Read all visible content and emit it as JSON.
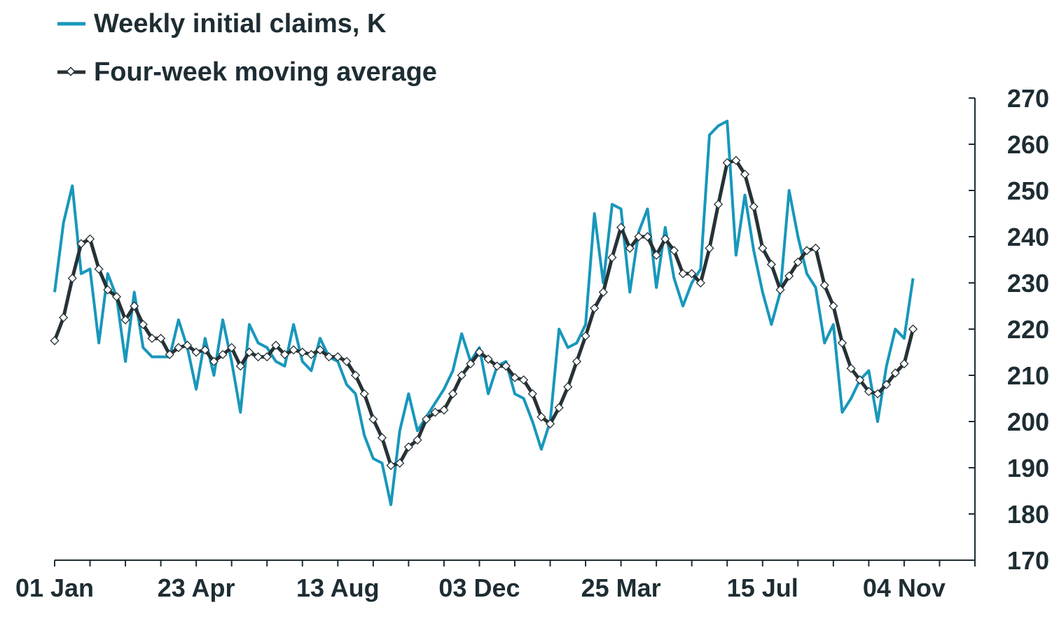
{
  "chart_data": {
    "type": "line",
    "title": "",
    "xlabel": "",
    "ylabel": "",
    "ylim": [
      170,
      270
    ],
    "yticks": [
      170,
      180,
      190,
      200,
      210,
      220,
      230,
      240,
      250,
      260,
      270
    ],
    "y_axis_side": "right",
    "grid": false,
    "legend_position": "top-left",
    "x_tick_labels": [
      "01 Jan",
      "23 Apr",
      "13 Aug",
      "03 Dec",
      "25 Mar",
      "15 Jul",
      "04 Nov"
    ],
    "x_tick_label_weeks": [
      0,
      16,
      32,
      48,
      64,
      80,
      96
    ],
    "x_minor_tick_every_weeks": 4,
    "x_axis_end_week": 104,
    "series": [
      {
        "name": "Weekly initial claims, K",
        "color": "#1897bb",
        "marker": "none",
        "start_week": 0,
        "values": [
          228,
          243,
          251,
          232,
          233,
          217,
          232,
          227,
          213,
          228,
          216,
          214,
          214,
          214,
          222,
          216,
          207,
          218,
          210,
          222,
          213,
          202,
          221,
          217,
          216,
          213,
          212,
          221,
          213,
          211,
          218,
          214,
          213,
          208,
          206,
          197,
          192,
          191,
          182,
          198,
          206,
          198,
          201,
          204,
          207,
          211,
          219,
          213,
          216,
          206,
          212,
          213,
          206,
          205,
          200,
          194,
          200,
          220,
          216,
          217,
          221,
          245,
          230,
          247,
          246,
          228,
          241,
          246,
          229,
          242,
          231,
          225,
          230,
          233,
          262,
          264,
          265,
          236,
          249,
          237,
          228,
          221,
          228,
          250,
          240,
          232,
          229,
          217,
          221,
          202,
          205,
          209,
          211,
          200,
          212,
          220,
          218,
          231
        ]
      },
      {
        "name": "Four-week moving average",
        "color": "#263236",
        "marker": "diamond",
        "start_week": 0,
        "values": [
          217.5,
          222.5,
          231,
          238.5,
          239.5,
          233,
          228.5,
          227,
          222,
          225,
          221,
          218,
          218,
          214.5,
          216,
          216.5,
          215,
          215.5,
          213,
          214.5,
          216,
          212,
          215,
          214,
          214,
          216.5,
          214.5,
          215.5,
          215,
          214.5,
          215.5,
          214,
          214,
          213,
          210,
          206,
          200.5,
          196.5,
          190.5,
          191,
          194.5,
          196,
          200.5,
          202,
          202.5,
          206,
          210,
          212.5,
          215,
          213.5,
          212,
          212,
          209.5,
          209,
          206,
          201,
          199.5,
          203,
          207.5,
          213,
          218.5,
          224.5,
          228,
          235.5,
          242,
          237.5,
          240,
          240,
          236,
          239.5,
          237,
          232,
          232,
          230,
          237.5,
          247,
          256,
          256.5,
          253.5,
          246.5,
          237.5,
          234,
          228.5,
          231.5,
          234.5,
          237,
          237.5,
          229.5,
          225,
          217,
          211.5,
          209,
          206.5,
          206,
          208,
          210.5,
          212.5,
          220
        ]
      }
    ]
  },
  "legend": {
    "items": [
      {
        "label": "Weekly initial claims, K"
      },
      {
        "label": "Four-week moving average"
      }
    ]
  }
}
